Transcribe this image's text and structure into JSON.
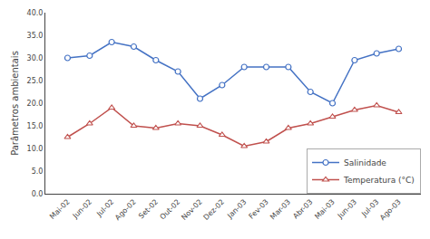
{
  "chart_data": {
    "type": "line",
    "ylabel": "Parâmetros ambientais",
    "categories": [
      "Mai-02",
      "Jun-02",
      "Jul-02",
      "Ago-02",
      "Set-02",
      "Out-02",
      "Nov-02",
      "Dez-02",
      "Jan-03",
      "Fev-03",
      "Mar-03",
      "Abr-03",
      "Mai-03",
      "Jun-03",
      "Jul-03",
      "Ago-03"
    ],
    "series": [
      {
        "name": "Salinidade",
        "color": "#4472c4",
        "marker": "circle",
        "values": [
          30.0,
          30.5,
          33.5,
          32.5,
          29.5,
          27.0,
          21.0,
          24.0,
          28.0,
          28.0,
          28.0,
          22.5,
          20.0,
          29.5,
          31.0,
          32.0
        ]
      },
      {
        "name": "Temperatura (°C)",
        "color": "#c0504d",
        "marker": "triangle-up",
        "values": [
          12.5,
          15.5,
          19.0,
          15.0,
          14.5,
          15.5,
          15.0,
          13.0,
          10.5,
          11.5,
          14.5,
          15.5,
          17.0,
          18.5,
          19.5,
          18.0
        ]
      }
    ],
    "ylim": [
      0,
      40
    ],
    "yticks": [
      {
        "value": 0,
        "label": "0.0"
      },
      {
        "value": 5,
        "label": "5.0"
      },
      {
        "value": 10,
        "label": "10.0"
      },
      {
        "value": 15,
        "label": "15.0"
      },
      {
        "value": 20,
        "label": "20.0"
      },
      {
        "value": 25,
        "label": "25.0"
      },
      {
        "value": 30,
        "label": "30.0"
      },
      {
        "value": 35,
        "label": "35.0"
      },
      {
        "value": 40,
        "label": "40.0"
      }
    ],
    "grid": false,
    "legend": "lower right"
  }
}
